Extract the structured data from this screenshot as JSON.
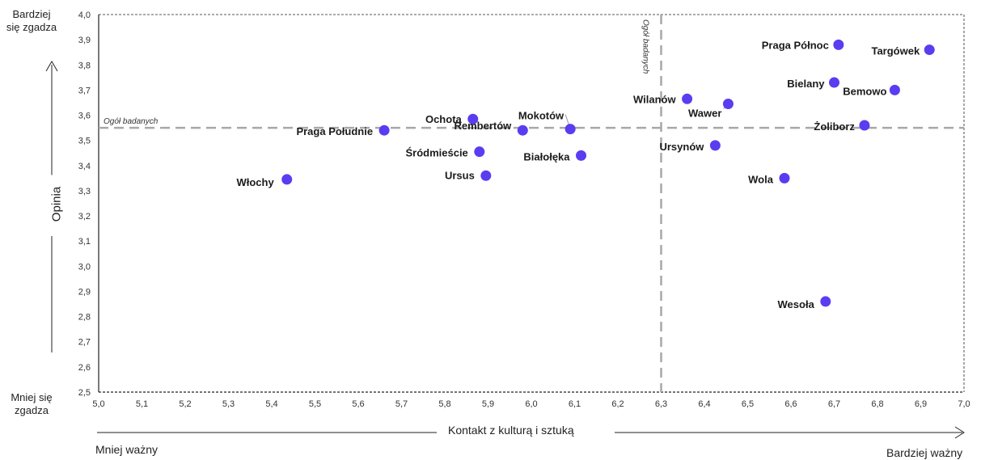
{
  "chart_data": {
    "type": "scatter",
    "xlabel": "Kontakt z kulturą i sztuką",
    "ylabel": "Opinia",
    "x_low_label": "Mniej ważny",
    "x_high_label": "Bardziej ważny",
    "y_high_label": [
      "Bardziej",
      "się zgadza"
    ],
    "y_low_label": [
      "Mniej się",
      "zgadza"
    ],
    "xlim": [
      5.0,
      7.0
    ],
    "ylim": [
      2.5,
      4.0
    ],
    "x_ticks": [
      "5,0",
      "5,1",
      "5,2",
      "5,3",
      "5,4",
      "5,5",
      "5,6",
      "5,7",
      "5,8",
      "5,9",
      "6,0",
      "6,1",
      "6,2",
      "6,3",
      "6,4",
      "6,5",
      "6,6",
      "6,7",
      "6,8",
      "6,9",
      "7,0"
    ],
    "y_ticks": [
      "2,5",
      "2,6",
      "2,7",
      "2,8",
      "2,9",
      "3,0",
      "3,1",
      "3,2",
      "3,3",
      "3,4",
      "3,5",
      "3,6",
      "3,7",
      "3,8",
      "3,9",
      "4,0"
    ],
    "reference_lines": {
      "x": 6.3,
      "y": 3.55,
      "x_label": "Ogół badanych",
      "y_label": "Ogół badanych"
    },
    "marker_color": "#5a3df0",
    "points": [
      {
        "label": "Praga Północ",
        "x": 6.71,
        "y": 3.88
      },
      {
        "label": "Targówek",
        "x": 6.92,
        "y": 3.86
      },
      {
        "label": "Bielany",
        "x": 6.7,
        "y": 3.73
      },
      {
        "label": "Bemowo",
        "x": 6.84,
        "y": 3.7
      },
      {
        "label": "Wilanów",
        "x": 6.36,
        "y": 3.665
      },
      {
        "label": "Wawer",
        "x": 6.455,
        "y": 3.645
      },
      {
        "label": "Ochota",
        "x": 5.865,
        "y": 3.585
      },
      {
        "label": "Mokotów",
        "x": 6.09,
        "y": 3.545
      },
      {
        "label": "Żoliborz",
        "x": 6.77,
        "y": 3.56
      },
      {
        "label": "Praga Południe",
        "x": 5.66,
        "y": 3.54
      },
      {
        "label": "Rembertów",
        "x": 5.98,
        "y": 3.54
      },
      {
        "label": "Ursynów",
        "x": 6.425,
        "y": 3.48
      },
      {
        "label": "Śródmieście",
        "x": 5.88,
        "y": 3.455
      },
      {
        "label": "Białołęka",
        "x": 6.115,
        "y": 3.44
      },
      {
        "label": "Ursus",
        "x": 5.895,
        "y": 3.36
      },
      {
        "label": "Wola",
        "x": 6.585,
        "y": 3.35
      },
      {
        "label": "Włochy",
        "x": 5.435,
        "y": 3.345
      },
      {
        "label": "Wesoła",
        "x": 6.68,
        "y": 2.86
      }
    ]
  }
}
